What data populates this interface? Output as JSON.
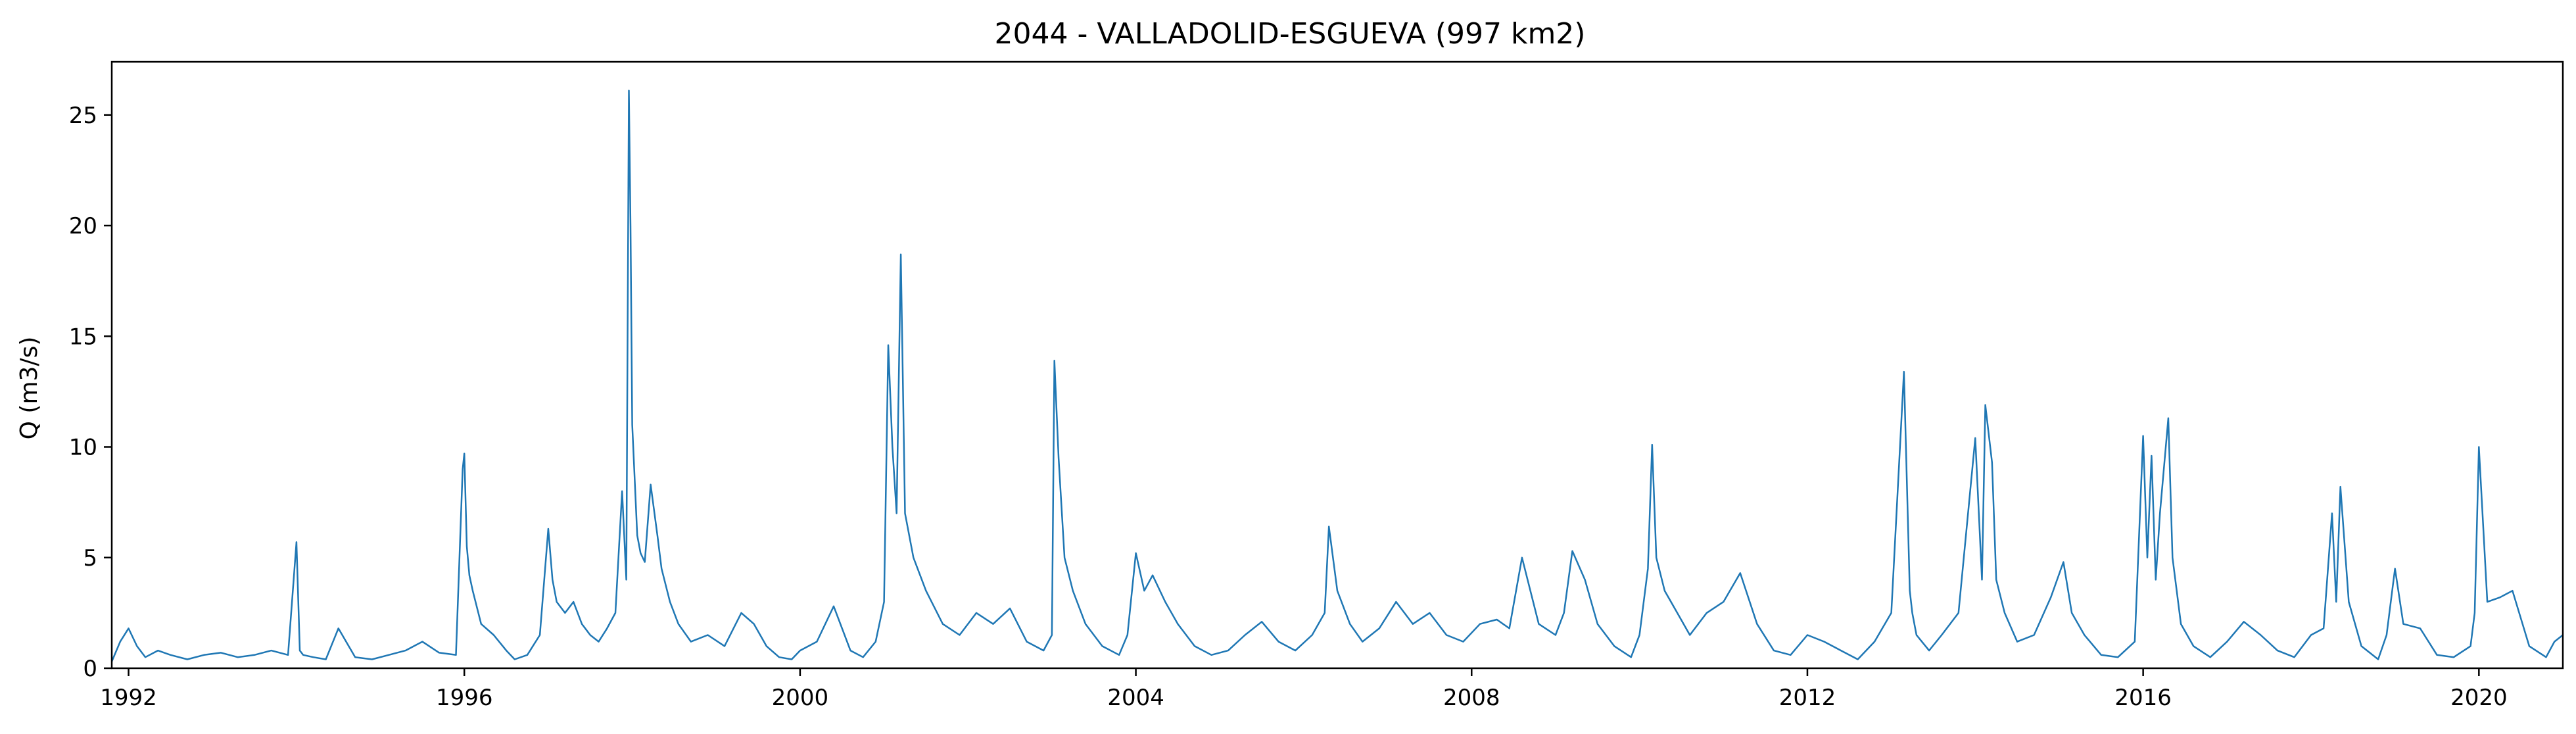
{
  "chart_data": {
    "type": "line",
    "title": "2044 - VALLADOLID-ESGUEVA (997 km2)",
    "xlabel": "",
    "ylabel": "Q (m3/s)",
    "xlim": [
      1991.8,
      2021.0
    ],
    "ylim": [
      0,
      27.4
    ],
    "x_ticks": [
      1992,
      1996,
      2000,
      2004,
      2008,
      2012,
      2016,
      2020
    ],
    "y_ticks": [
      0,
      5,
      10,
      15,
      20,
      25
    ],
    "grid": false,
    "legend": "none",
    "series_color": "#1f77b4",
    "series": [
      {
        "x": [
          1991.8,
          1991.9,
          1992.0,
          1992.1,
          1992.2,
          1992.35,
          1992.5,
          1992.7,
          1992.9,
          1993.1,
          1993.3,
          1993.5,
          1993.7,
          1993.9,
          1994.0,
          1994.04,
          1994.08,
          1994.2,
          1994.35,
          1994.5,
          1994.7,
          1994.9,
          1995.1,
          1995.3,
          1995.5,
          1995.7,
          1995.9,
          1995.98,
          1996.0,
          1996.03,
          1996.06,
          1996.1,
          1996.2,
          1996.35,
          1996.5,
          1996.6,
          1996.75,
          1996.9,
          1997.0,
          1997.05,
          1997.1,
          1997.2,
          1997.3,
          1997.4,
          1997.5,
          1997.6,
          1997.7,
          1997.8,
          1997.88,
          1997.93,
          1997.96,
          1997.98,
          1998.0,
          1998.03,
          1998.06,
          1998.1,
          1998.15,
          1998.22,
          1998.3,
          1998.35,
          1998.45,
          1998.55,
          1998.7,
          1998.9,
          1999.1,
          1999.3,
          1999.45,
          1999.6,
          1999.75,
          1999.9,
          2000.0,
          2000.2,
          2000.4,
          2000.6,
          2000.75,
          2000.9,
          2001.0,
          2001.05,
          2001.1,
          2001.15,
          2001.2,
          2001.25,
          2001.35,
          2001.5,
          2001.7,
          2001.9,
          2002.1,
          2002.3,
          2002.5,
          2002.7,
          2002.9,
          2003.0,
          2003.03,
          2003.08,
          2003.15,
          2003.25,
          2003.4,
          2003.6,
          2003.8,
          2003.9,
          2004.0,
          2004.1,
          2004.2,
          2004.35,
          2004.5,
          2004.7,
          2004.9,
          2005.1,
          2005.3,
          2005.5,
          2005.7,
          2005.9,
          2006.1,
          2006.25,
          2006.3,
          2006.4,
          2006.55,
          2006.7,
          2006.9,
          2007.1,
          2007.3,
          2007.5,
          2007.7,
          2007.9,
          2008.1,
          2008.3,
          2008.45,
          2008.6,
          2008.8,
          2009.0,
          2009.1,
          2009.2,
          2009.35,
          2009.5,
          2009.7,
          2009.9,
          2010.0,
          2010.1,
          2010.15,
          2010.2,
          2010.3,
          2010.45,
          2010.6,
          2010.8,
          2011.0,
          2011.2,
          2011.4,
          2011.6,
          2011.8,
          2012.0,
          2012.2,
          2012.4,
          2012.6,
          2012.8,
          2013.0,
          2013.15,
          2013.22,
          2013.25,
          2013.3,
          2013.45,
          2013.6,
          2013.8,
          2014.0,
          2014.08,
          2014.12,
          2014.2,
          2014.25,
          2014.35,
          2014.5,
          2014.7,
          2014.9,
          2015.05,
          2015.15,
          2015.3,
          2015.5,
          2015.7,
          2015.9,
          2016.0,
          2016.05,
          2016.1,
          2016.15,
          2016.2,
          2016.3,
          2016.35,
          2016.45,
          2016.6,
          2016.8,
          2017.0,
          2017.2,
          2017.4,
          2017.6,
          2017.8,
          2018.0,
          2018.15,
          2018.25,
          2018.3,
          2018.35,
          2018.45,
          2018.6,
          2018.8,
          2018.9,
          2019.0,
          2019.1,
          2019.3,
          2019.5,
          2019.7,
          2019.9,
          2019.95,
          2020.0,
          2020.1,
          2020.25,
          2020.4,
          2020.6,
          2020.8,
          2020.9,
          2021.0
        ],
        "values": [
          0.3,
          1.2,
          1.8,
          1.0,
          0.5,
          0.8,
          0.6,
          0.4,
          0.6,
          0.7,
          0.5,
          0.6,
          0.8,
          0.6,
          5.7,
          0.8,
          0.6,
          0.5,
          0.4,
          1.8,
          0.5,
          0.4,
          0.6,
          0.8,
          1.2,
          0.7,
          0.6,
          9.0,
          9.7,
          5.5,
          4.2,
          3.5,
          2.0,
          1.5,
          0.8,
          0.4,
          0.6,
          1.5,
          6.3,
          4.0,
          3.0,
          2.5,
          3.0,
          2.0,
          1.5,
          1.2,
          1.8,
          2.5,
          8.0,
          4.0,
          26.1,
          20.0,
          11.0,
          8.5,
          6.0,
          5.2,
          4.8,
          8.3,
          6.0,
          4.5,
          3.0,
          2.0,
          1.2,
          1.5,
          1.0,
          2.5,
          2.0,
          1.0,
          0.5,
          0.4,
          0.8,
          1.2,
          2.8,
          0.8,
          0.5,
          1.2,
          3.0,
          14.6,
          10.0,
          7.0,
          18.7,
          7.0,
          5.0,
          3.5,
          2.0,
          1.5,
          2.5,
          2.0,
          2.7,
          1.2,
          0.8,
          1.5,
          13.9,
          9.5,
          5.0,
          3.5,
          2.0,
          1.0,
          0.6,
          1.5,
          5.2,
          3.5,
          4.2,
          3.0,
          2.0,
          1.0,
          0.6,
          0.8,
          1.5,
          2.1,
          1.2,
          0.8,
          1.5,
          2.5,
          6.4,
          3.5,
          2.0,
          1.2,
          1.8,
          3.0,
          2.0,
          2.5,
          1.5,
          1.2,
          2.0,
          2.2,
          1.8,
          5.0,
          2.0,
          1.5,
          2.5,
          5.3,
          4.0,
          2.0,
          1.0,
          0.5,
          1.5,
          4.5,
          10.1,
          5.0,
          3.5,
          2.5,
          1.5,
          2.5,
          3.0,
          4.3,
          2.0,
          0.8,
          0.6,
          1.5,
          1.2,
          0.8,
          0.4,
          1.2,
          2.5,
          13.4,
          3.5,
          2.5,
          1.5,
          0.8,
          1.5,
          2.5,
          10.4,
          4.0,
          11.9,
          9.3,
          4.0,
          2.5,
          1.2,
          1.5,
          3.2,
          4.8,
          2.5,
          1.5,
          0.6,
          0.5,
          1.2,
          10.5,
          5.0,
          9.6,
          4.0,
          7.0,
          11.3,
          5.0,
          2.0,
          1.0,
          0.5,
          1.2,
          2.1,
          1.5,
          0.8,
          0.5,
          1.5,
          1.8,
          7.0,
          3.0,
          8.2,
          3.0,
          1.0,
          0.4,
          1.5,
          4.5,
          2.0,
          1.8,
          0.6,
          0.5,
          1.0,
          2.5,
          10.0,
          3.0,
          3.2,
          3.5,
          1.0,
          0.5,
          1.2,
          1.5
        ]
      }
    ]
  }
}
